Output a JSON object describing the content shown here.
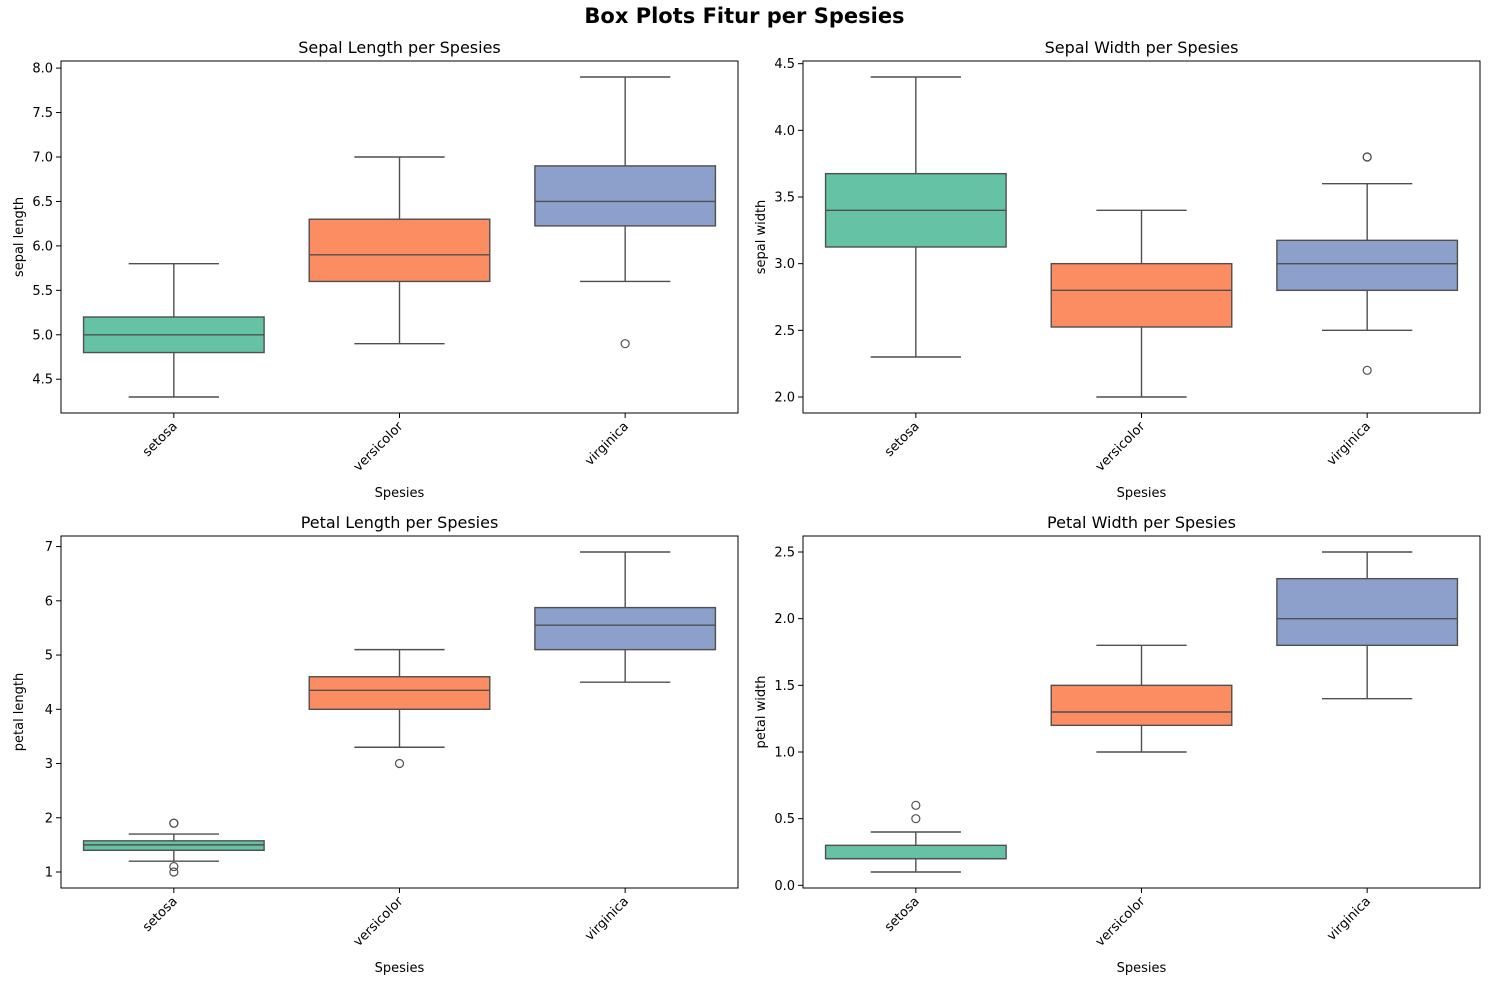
{
  "suptitle": "Box Plots Fitur per Spesies",
  "palette": [
    "#66c2a5",
    "#fc8d62",
    "#8da0cb"
  ],
  "chart_data": [
    {
      "type": "box",
      "title": "Sepal Length per Spesies",
      "xlabel": "Spesies",
      "ylabel": "sepal length",
      "categories": [
        "setosa",
        "versicolor",
        "virginica"
      ],
      "ylim": [
        4.12,
        8.08
      ],
      "yticks": [
        4.5,
        5.0,
        5.5,
        6.0,
        6.5,
        7.0,
        7.5,
        8.0
      ],
      "tick_decimals": 1,
      "boxes": [
        {
          "whislo": 4.3,
          "q1": 4.8,
          "med": 5.0,
          "q3": 5.2,
          "whishi": 5.8,
          "fliers": []
        },
        {
          "whislo": 4.9,
          "q1": 5.6,
          "med": 5.9,
          "q3": 6.3,
          "whishi": 7.0,
          "fliers": []
        },
        {
          "whislo": 5.6,
          "q1": 6.225,
          "med": 6.5,
          "q3": 6.9,
          "whishi": 7.9,
          "fliers": [
            4.9
          ]
        }
      ]
    },
    {
      "type": "box",
      "title": "Sepal Width per Spesies",
      "xlabel": "Spesies",
      "ylabel": "sepal width",
      "categories": [
        "setosa",
        "versicolor",
        "virginica"
      ],
      "ylim": [
        1.88,
        4.52
      ],
      "yticks": [
        2.0,
        2.5,
        3.0,
        3.5,
        4.0,
        4.5
      ],
      "tick_decimals": 1,
      "boxes": [
        {
          "whislo": 2.3,
          "q1": 3.125,
          "med": 3.4,
          "q3": 3.675,
          "whishi": 4.4,
          "fliers": []
        },
        {
          "whislo": 2.0,
          "q1": 2.525,
          "med": 2.8,
          "q3": 3.0,
          "whishi": 3.4,
          "fliers": []
        },
        {
          "whislo": 2.5,
          "q1": 2.8,
          "med": 3.0,
          "q3": 3.175,
          "whishi": 3.6,
          "fliers": [
            3.8,
            3.8,
            2.2
          ]
        }
      ]
    },
    {
      "type": "box",
      "title": "Petal Length per Spesies",
      "xlabel": "Spesies",
      "ylabel": "petal length",
      "categories": [
        "setosa",
        "versicolor",
        "virginica"
      ],
      "ylim": [
        0.705,
        7.195
      ],
      "yticks": [
        1,
        2,
        3,
        4,
        5,
        6,
        7
      ],
      "tick_decimals": 0,
      "boxes": [
        {
          "whislo": 1.2,
          "q1": 1.4,
          "med": 1.5,
          "q3": 1.575,
          "whishi": 1.7,
          "fliers": [
            1.9,
            1.9,
            1.1,
            1.0
          ]
        },
        {
          "whislo": 3.3,
          "q1": 4.0,
          "med": 4.35,
          "q3": 4.6,
          "whishi": 5.1,
          "fliers": [
            3.0
          ]
        },
        {
          "whislo": 4.5,
          "q1": 5.1,
          "med": 5.55,
          "q3": 5.875,
          "whishi": 6.9,
          "fliers": []
        }
      ]
    },
    {
      "type": "box",
      "title": "Petal Width per Spesies",
      "xlabel": "Spesies",
      "ylabel": "petal width",
      "categories": [
        "setosa",
        "versicolor",
        "virginica"
      ],
      "ylim": [
        -0.02,
        2.62
      ],
      "yticks": [
        0.0,
        0.5,
        1.0,
        1.5,
        2.0,
        2.5
      ],
      "tick_decimals": 1,
      "boxes": [
        {
          "whislo": 0.1,
          "q1": 0.2,
          "med": 0.2,
          "q3": 0.3,
          "whishi": 0.4,
          "fliers": [
            0.5,
            0.6
          ]
        },
        {
          "whislo": 1.0,
          "q1": 1.2,
          "med": 1.3,
          "q3": 1.5,
          "whishi": 1.8,
          "fliers": []
        },
        {
          "whislo": 1.4,
          "q1": 1.8,
          "med": 2.0,
          "q3": 2.3,
          "whishi": 2.5,
          "fliers": []
        }
      ]
    }
  ]
}
